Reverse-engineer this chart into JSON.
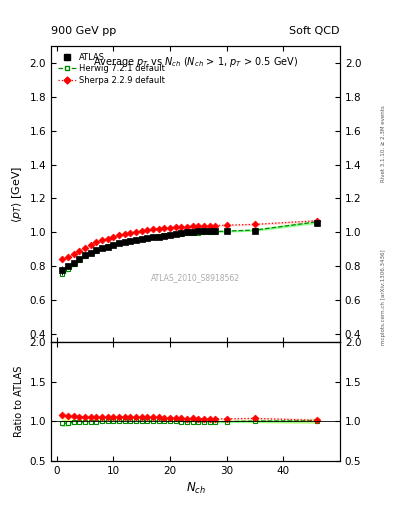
{
  "title_left": "900 GeV pp",
  "title_right": "Soft QCD",
  "plot_title": "Average $p_T$ vs $N_{ch}$ ($N_{ch}$ > 1, $p_T$ > 0.5 GeV)",
  "ylabel_main": "$\\langle p_T \\rangle$ [GeV]",
  "ylabel_ratio": "Ratio to ATLAS",
  "xlabel": "$N_{ch}$",
  "watermark": "ATLAS_2010_S8918562",
  "right_label": "mcplots.cern.ch [arXiv:1306.3436]",
  "right_label2": "Rivet 3.1.10, ≥ 2.3M events",
  "atlas_x": [
    1,
    2,
    3,
    4,
    5,
    6,
    7,
    8,
    9,
    10,
    11,
    12,
    13,
    14,
    15,
    16,
    17,
    18,
    19,
    20,
    21,
    22,
    23,
    24,
    25,
    26,
    27,
    28,
    30,
    35,
    46
  ],
  "atlas_y": [
    0.775,
    0.8,
    0.82,
    0.845,
    0.865,
    0.88,
    0.895,
    0.905,
    0.915,
    0.925,
    0.935,
    0.94,
    0.95,
    0.955,
    0.96,
    0.965,
    0.97,
    0.975,
    0.98,
    0.985,
    0.99,
    0.995,
    1.0,
    1.0,
    1.005,
    1.005,
    1.005,
    1.01,
    1.01,
    1.01,
    1.055
  ],
  "atlas_yerr": [
    0.025,
    0.018,
    0.014,
    0.011,
    0.01,
    0.009,
    0.008,
    0.008,
    0.007,
    0.007,
    0.007,
    0.006,
    0.006,
    0.006,
    0.006,
    0.006,
    0.005,
    0.005,
    0.005,
    0.005,
    0.005,
    0.005,
    0.005,
    0.005,
    0.005,
    0.005,
    0.005,
    0.005,
    0.005,
    0.01,
    0.02
  ],
  "herwig_x": [
    1,
    2,
    3,
    4,
    5,
    6,
    7,
    8,
    9,
    10,
    11,
    12,
    13,
    14,
    15,
    16,
    17,
    18,
    19,
    20,
    21,
    22,
    23,
    24,
    25,
    26,
    27,
    28,
    30,
    35,
    46
  ],
  "herwig_y": [
    0.755,
    0.782,
    0.81,
    0.835,
    0.858,
    0.877,
    0.892,
    0.905,
    0.916,
    0.926,
    0.935,
    0.943,
    0.95,
    0.957,
    0.963,
    0.968,
    0.973,
    0.977,
    0.981,
    0.985,
    0.988,
    0.991,
    0.994,
    0.996,
    0.998,
    1.0,
    1.002,
    1.004,
    1.007,
    1.013,
    1.062
  ],
  "herwig_yerr": [
    0.008,
    0.006,
    0.005,
    0.004,
    0.004,
    0.003,
    0.003,
    0.003,
    0.003,
    0.002,
    0.002,
    0.002,
    0.002,
    0.002,
    0.002,
    0.002,
    0.002,
    0.002,
    0.002,
    0.002,
    0.002,
    0.002,
    0.002,
    0.002,
    0.002,
    0.002,
    0.002,
    0.002,
    0.002,
    0.003,
    0.006
  ],
  "sherpa_x": [
    1,
    2,
    3,
    4,
    5,
    6,
    7,
    8,
    9,
    10,
    11,
    12,
    13,
    14,
    15,
    16,
    17,
    18,
    19,
    20,
    21,
    22,
    23,
    24,
    25,
    26,
    27,
    28,
    30,
    35,
    46
  ],
  "sherpa_y": [
    0.84,
    0.853,
    0.873,
    0.892,
    0.91,
    0.926,
    0.94,
    0.952,
    0.963,
    0.972,
    0.981,
    0.989,
    0.996,
    1.003,
    1.008,
    1.013,
    1.018,
    1.022,
    1.025,
    1.028,
    1.03,
    1.032,
    1.034,
    1.036,
    1.037,
    1.038,
    1.039,
    1.04,
    1.042,
    1.047,
    1.068
  ],
  "sherpa_yerr": [
    0.008,
    0.006,
    0.005,
    0.004,
    0.004,
    0.003,
    0.003,
    0.003,
    0.003,
    0.002,
    0.002,
    0.002,
    0.002,
    0.002,
    0.002,
    0.002,
    0.002,
    0.002,
    0.002,
    0.002,
    0.002,
    0.002,
    0.002,
    0.002,
    0.002,
    0.002,
    0.002,
    0.002,
    0.002,
    0.003,
    0.006
  ],
  "ylim_main": [
    0.35,
    2.1
  ],
  "ylim_ratio": [
    0.5,
    2.0
  ],
  "xlim": [
    -1,
    50
  ],
  "atlas_color": "#000000",
  "herwig_color": "#008800",
  "sherpa_color": "#ff0000",
  "herwig_band_color": "#88ff88",
  "atlas_band_color": "#ffff88",
  "background_color": "#ffffff",
  "yticks_main": [
    0.4,
    0.6,
    0.8,
    1.0,
    1.2,
    1.4,
    1.6,
    1.8,
    2.0
  ],
  "yticks_ratio": [
    0.5,
    1.0,
    1.5,
    2.0
  ],
  "xticks": [
    0,
    10,
    20,
    30,
    40
  ]
}
